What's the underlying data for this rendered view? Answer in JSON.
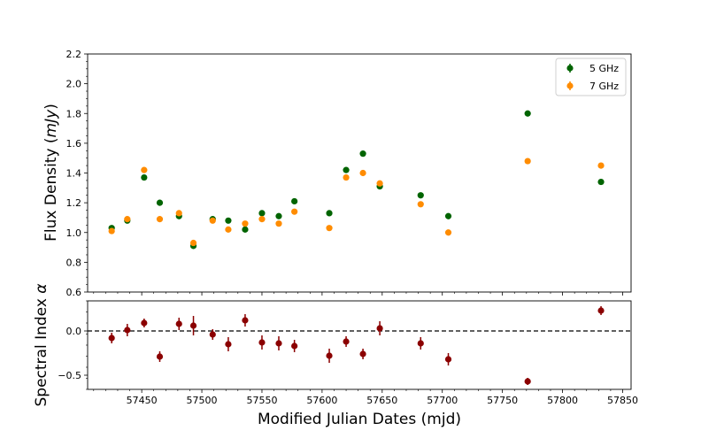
{
  "chart_data": {
    "type": "scatter",
    "xlabel": "Modified Julian Dates (mjd)",
    "xlim": [
      57405,
      57857
    ],
    "xticks": [
      "57450",
      "57500",
      "57550",
      "57600",
      "57650",
      "57700",
      "57750",
      "57800",
      "57850"
    ],
    "x": [
      57425,
      57438,
      57452,
      57465,
      57481,
      57493,
      57509,
      57522,
      57536,
      57550,
      57564,
      57577,
      57606,
      57620,
      57634,
      57648,
      57682,
      57705,
      57771,
      57832
    ],
    "panels": [
      {
        "id": "flux",
        "ylabel": "Flux Density (mJy)",
        "ylabel_prefix": "Flux Density (",
        "ylabel_italic": "mJy",
        "ylabel_suffix": ")",
        "ylim": [
          0.6,
          2.2
        ],
        "yticks": [
          "0.6",
          "0.8",
          "1.0",
          "1.2",
          "1.4",
          "1.6",
          "1.8",
          "2.0",
          "2.2"
        ],
        "legend_position": "upper-right",
        "series": [
          {
            "name": "5 GHz",
            "color": "#006400",
            "y": [
              1.03,
              1.08,
              1.37,
              1.2,
              1.11,
              0.91,
              1.09,
              1.08,
              1.02,
              1.13,
              1.11,
              1.21,
              1.13,
              1.42,
              1.53,
              1.31,
              1.25,
              1.11,
              1.8,
              1.34
            ]
          },
          {
            "name": "7 GHz",
            "color": "#ff8c00",
            "y": [
              1.01,
              1.09,
              1.42,
              1.09,
              1.13,
              0.93,
              1.08,
              1.02,
              1.06,
              1.09,
              1.06,
              1.14,
              1.03,
              1.37,
              1.4,
              1.33,
              1.19,
              1.0,
              1.48,
              1.45
            ]
          }
        ]
      },
      {
        "id": "spectral-index",
        "ylabel": "Spectral Index α",
        "ylabel_prefix": "Spectral Index ",
        "ylabel_italic": "α",
        "ylabel_suffix": "",
        "ylim": [
          -0.66,
          0.34
        ],
        "yticks": [
          "−0.5",
          "0.0"
        ],
        "reference_line_y": 0.0,
        "series": [
          {
            "name": "",
            "color": "#8b0000",
            "y": [
              -0.08,
              0.01,
              0.09,
              -0.29,
              0.08,
              0.06,
              -0.04,
              -0.15,
              0.12,
              -0.13,
              -0.14,
              -0.17,
              -0.28,
              -0.12,
              -0.26,
              0.03,
              -0.14,
              -0.32,
              -0.57,
              0.23
            ],
            "err": [
              0.06,
              0.07,
              0.05,
              0.06,
              0.07,
              0.11,
              0.06,
              0.08,
              0.07,
              0.08,
              0.08,
              0.07,
              0.08,
              0.06,
              0.06,
              0.08,
              0.07,
              0.07,
              0.04,
              0.05
            ]
          }
        ]
      }
    ]
  }
}
